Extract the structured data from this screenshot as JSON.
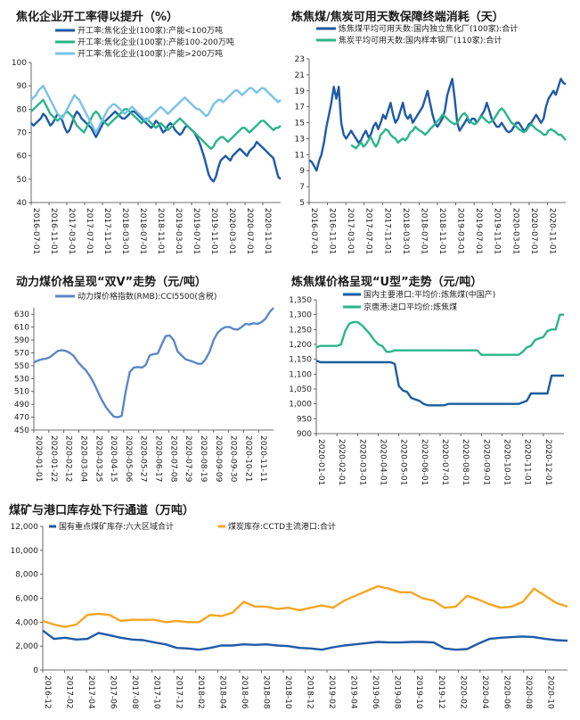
{
  "colors": {
    "dark_blue": "#1f5aa6",
    "teal": "#2bb58a",
    "light_blue": "#79c3e8",
    "orange": "#f5a623",
    "navy": "#1b5d9e"
  },
  "chart_data": [
    {
      "id": "c1",
      "type": "line",
      "title": "焦化企业开工率得以提升（%）",
      "ylim": [
        40,
        100
      ],
      "yticks": [
        40,
        50,
        60,
        70,
        80,
        90,
        100
      ],
      "xticks": [
        "2016-07-01",
        "2016-11-01",
        "2017-03-01",
        "2017-07-01",
        "2017-11-01",
        "2018-03-01",
        "2018-07-01",
        "2018-11-01",
        "2019-03-01",
        "2019-07-01",
        "2019-11-01",
        "2020-03-01",
        "2020-07-01",
        "2020-11-01"
      ],
      "npoints": 105,
      "series": [
        {
          "name": "开工率:焦化企业(100家):产能<100万吨",
          "color": "#1f5aa6",
          "values": [
            74,
            73,
            74,
            75,
            76,
            78,
            77,
            75,
            73,
            74,
            76,
            78,
            77,
            75,
            72,
            70,
            71,
            74,
            77,
            79,
            78,
            76,
            75,
            74,
            73,
            72,
            70,
            68,
            70,
            72,
            74,
            75,
            76,
            77,
            78,
            79,
            78,
            77,
            76,
            76,
            77,
            78,
            79,
            79,
            78,
            77,
            76,
            75,
            74,
            73,
            72,
            73,
            75,
            74,
            72,
            70,
            71,
            73,
            74,
            73,
            71,
            70,
            69,
            70,
            72,
            73,
            72,
            71,
            70,
            68,
            66,
            63,
            60,
            56,
            52,
            50,
            49,
            51,
            55,
            58,
            59,
            60,
            59,
            58,
            60,
            61,
            62,
            63,
            62,
            61,
            60,
            62,
            63,
            64,
            66,
            65,
            64,
            63,
            62,
            61,
            60,
            59,
            55,
            51,
            50
          ]
        },
        {
          "name": "开工率:焦化企业(100家):产能100-200万吨",
          "color": "#2bb58a",
          "values": [
            79,
            80,
            81,
            82,
            83,
            84,
            82,
            80,
            78,
            77,
            76,
            75,
            76,
            77,
            78,
            79,
            78,
            77,
            75,
            73,
            72,
            71,
            70,
            72,
            74,
            76,
            78,
            79,
            78,
            76,
            75,
            74,
            73,
            74,
            75,
            76,
            77,
            78,
            79,
            80,
            80,
            79,
            78,
            77,
            76,
            75,
            74,
            75,
            76,
            75,
            74,
            73,
            72,
            73,
            74,
            73,
            72,
            71,
            72,
            73,
            74,
            75,
            76,
            75,
            74,
            73,
            72,
            71,
            70,
            69,
            68,
            67,
            66,
            65,
            64,
            63,
            64,
            66,
            67,
            68,
            68,
            67,
            66,
            67,
            68,
            69,
            70,
            71,
            72,
            72,
            71,
            70,
            71,
            72,
            73,
            74,
            75,
            75,
            74,
            73,
            72,
            71,
            72,
            72,
            73
          ]
        },
        {
          "name": "开工率:焦化企业(100家):产能>200万吨",
          "color": "#79c3e8",
          "values": [
            84,
            85,
            86,
            88,
            89,
            90,
            88,
            86,
            84,
            82,
            80,
            78,
            77,
            76,
            78,
            80,
            82,
            84,
            86,
            85,
            84,
            82,
            80,
            78,
            76,
            74,
            72,
            70,
            72,
            74,
            76,
            78,
            80,
            81,
            82,
            82,
            81,
            80,
            79,
            78,
            79,
            80,
            81,
            80,
            79,
            78,
            77,
            76,
            75,
            76,
            77,
            78,
            79,
            80,
            81,
            80,
            79,
            78,
            79,
            80,
            81,
            82,
            83,
            84,
            85,
            84,
            83,
            82,
            81,
            80,
            80,
            79,
            78,
            77,
            78,
            80,
            82,
            83,
            84,
            84,
            83,
            84,
            85,
            86,
            87,
            88,
            88,
            87,
            86,
            87,
            88,
            89,
            89,
            88,
            87,
            88,
            89,
            89,
            88,
            87,
            86,
            85,
            84,
            83,
            84
          ]
        }
      ]
    },
    {
      "id": "c2",
      "type": "line",
      "title": "炼焦煤/焦炭可用天数保障终端消耗（天）",
      "ylim": [
        5,
        23
      ],
      "yticks": [
        5,
        7,
        9,
        11,
        13,
        15,
        17,
        19,
        21,
        23
      ],
      "xticks": [
        "2016-07-01",
        "2016-11-01",
        "2017-03-01",
        "2017-07-01",
        "2017-11-01",
        "2018-03-01",
        "2018-07-01",
        "2018-11-01",
        "2019-03-01",
        "2019-07-01",
        "2019-11-01",
        "2020-03-01",
        "2020-07-01",
        "2020-11-01"
      ],
      "npoints": 105,
      "series": [
        {
          "name": "炼焦煤平均可用天数:国内独立焦化厂(100家):合计",
          "color": "#1f5aa6",
          "values": [
            10.3,
            10.1,
            9.6,
            9.0,
            10.2,
            11.0,
            12.5,
            14.5,
            16.0,
            17.5,
            19.5,
            18.0,
            19.5,
            15.0,
            13.5,
            13.0,
            13.5,
            14.0,
            13.5,
            13.0,
            12.5,
            12.8,
            13.5,
            14.0,
            13.2,
            13.5,
            14.5,
            15.0,
            14.2,
            15.0,
            16.0,
            15.5,
            16.5,
            17.5,
            16.0,
            15.0,
            15.5,
            16.5,
            17.5,
            16.0,
            15.5,
            16.0,
            15.0,
            15.5,
            16.0,
            16.5,
            17.0,
            18.0,
            19.0,
            17.5,
            16.0,
            15.0,
            14.5,
            15.0,
            15.5,
            16.5,
            18.5,
            19.5,
            20.5,
            18.0,
            15.0,
            14.0,
            14.5,
            15.0,
            15.5,
            15.0,
            15.5,
            15.5,
            15.0,
            15.5,
            16.0,
            16.5,
            17.5,
            16.5,
            15.5,
            15.0,
            14.5,
            14.5,
            15.0,
            14.5,
            14.0,
            13.8,
            14.0,
            14.5,
            15.0,
            15.0,
            14.5,
            14.0,
            14.2,
            14.8,
            15.0,
            15.5,
            16.0,
            15.5,
            15.0,
            15.5,
            17.0,
            18.0,
            18.5,
            19.0,
            18.5,
            19.5,
            20.5,
            20.0,
            19.8
          ]
        },
        {
          "name": "焦炭平均可用天数:国内样本钢厂(110家):合计",
          "color": "#2bb58a",
          "values": [
            null,
            null,
            null,
            null,
            null,
            null,
            null,
            null,
            null,
            null,
            null,
            null,
            null,
            null,
            null,
            null,
            null,
            12.2,
            12.0,
            11.8,
            12.2,
            12.5,
            12.0,
            12.3,
            12.8,
            13.2,
            12.5,
            12.0,
            12.5,
            13.5,
            13.8,
            14.2,
            14.0,
            13.5,
            13.2,
            13.0,
            12.5,
            12.8,
            13.0,
            12.8,
            13.2,
            13.8,
            14.0,
            14.5,
            14.2,
            14.0,
            13.8,
            13.5,
            13.8,
            14.2,
            14.5,
            14.8,
            15.2,
            15.5,
            16.0,
            15.8,
            15.5,
            15.2,
            15.0,
            14.8,
            15.0,
            15.5,
            16.0,
            16.2,
            15.8,
            15.2,
            15.0,
            14.8,
            15.0,
            15.5,
            15.8,
            15.5,
            15.2,
            15.0,
            15.2,
            15.5,
            16.0,
            16.5,
            16.8,
            16.5,
            16.0,
            15.5,
            15.0,
            14.8,
            14.5,
            14.2,
            14.0,
            13.8,
            14.0,
            14.5,
            14.8,
            14.5,
            14.2,
            14.0,
            13.8,
            13.5,
            13.5,
            14.0,
            14.2,
            14.0,
            13.8,
            13.5,
            13.5,
            13.2,
            12.8
          ]
        }
      ]
    },
    {
      "id": "c3",
      "type": "line",
      "title": "动力煤价格呈现“双V”走势（元/吨）",
      "ylim": [
        450,
        640
      ],
      "yticks": [
        450,
        470,
        490,
        510,
        530,
        550,
        570,
        590,
        610,
        630
      ],
      "xticks": [
        "2020-01-01",
        "2020-01-22",
        "2020-02-12",
        "2020-03-04",
        "2020-03-25",
        "2020-04-15",
        "2020-05-06",
        "2020-05-27",
        "2020-06-17",
        "2020-07-08",
        "2020-07-29",
        "2020-08-19",
        "2020-09-09",
        "2020-09-30",
        "2020-10-21",
        "2020-11-11"
      ],
      "npoints": 61,
      "series": [
        {
          "name": "动力煤价格指数(RMB):CCI5500(含税)",
          "color": "#5b88c6",
          "values": [
            555,
            558,
            560,
            561,
            563,
            568,
            573,
            574,
            573,
            570,
            565,
            556,
            549,
            543,
            534,
            523,
            510,
            497,
            486,
            478,
            471,
            470,
            472,
            510,
            540,
            547,
            548,
            547,
            551,
            566,
            568,
            569,
            583,
            596,
            597,
            590,
            572,
            566,
            560,
            558,
            556,
            553,
            553,
            560,
            572,
            590,
            601,
            607,
            610,
            610,
            607,
            606,
            610,
            615,
            614,
            616,
            615,
            618,
            623,
            633,
            640
          ]
        }
      ]
    },
    {
      "id": "c4",
      "type": "line",
      "title": "炼焦煤价格呈现“U型”走势（元/吨）",
      "ylim": [
        900,
        1350
      ],
      "yticks": [
        900,
        950,
        1000,
        1050,
        1100,
        1150,
        1200,
        1250,
        1300,
        1350
      ],
      "yticklabels": [
        "900",
        "950",
        "1,000",
        "1,050",
        "1,100",
        "1,150",
        "1,200",
        "1,250",
        "1,300",
        "1,350"
      ],
      "xticks": [
        "2020-01-01",
        "2020-02-01",
        "2020-03-01",
        "2020-04-01",
        "2020-05-01",
        "2020-06-01",
        "2020-07-01",
        "2020-08-01",
        "2020-09-01",
        "2020-10-01",
        "2020-11-01",
        "2020-12-01"
      ],
      "npoints": 61,
      "series": [
        {
          "name": "国内主要港口:平均价:炼焦煤(中国产)",
          "color": "#1b5d9e",
          "values": [
            1145,
            1140,
            1140,
            1140,
            1140,
            1140,
            1140,
            1140,
            1140,
            1140,
            1140,
            1140,
            1140,
            1140,
            1140,
            1140,
            1140,
            1140,
            1140,
            1135,
            1060,
            1045,
            1040,
            1020,
            1015,
            1010,
            1000,
            995,
            995,
            995,
            995,
            995,
            1000,
            1000,
            1000,
            1000,
            1000,
            1000,
            1000,
            1000,
            1000,
            1000,
            1000,
            1000,
            1000,
            1000,
            1000,
            1000,
            1000,
            1000,
            1005,
            1010,
            1035,
            1035,
            1035,
            1035,
            1035,
            1095,
            1095,
            1095,
            1095
          ]
        },
        {
          "name": "京唐港:进口平均价:炼焦煤",
          "color": "#2bb58a",
          "values": [
            1190,
            1195,
            1195,
            1195,
            1195,
            1195,
            1200,
            1245,
            1270,
            1275,
            1275,
            1265,
            1250,
            1235,
            1215,
            1200,
            1195,
            1175,
            1175,
            1180,
            1180,
            1180,
            1180,
            1180,
            1180,
            1180,
            1180,
            1180,
            1180,
            1180,
            1180,
            1180,
            1180,
            1180,
            1180,
            1180,
            1180,
            1180,
            1180,
            1180,
            1165,
            1165,
            1165,
            1165,
            1165,
            1165,
            1165,
            1165,
            1165,
            1165,
            1175,
            1190,
            1195,
            1215,
            1220,
            1225,
            1245,
            1250,
            1250,
            1300,
            1300
          ]
        }
      ]
    },
    {
      "id": "c5",
      "type": "area",
      "title": "煤矿与港口库存处下行通道（万吨）",
      "ylim": [
        0,
        12000
      ],
      "yticks": [
        0,
        2000,
        4000,
        6000,
        8000,
        10000,
        12000
      ],
      "yticklabels": [
        "0",
        "2,000",
        "4,000",
        "6,000",
        "8,000",
        "10,000",
        "12,000"
      ],
      "xticks": [
        "2016-12",
        "2017-02",
        "2017-04",
        "2017-06",
        "2017-08",
        "2017-10",
        "2017-12",
        "2018-02",
        "2018-04",
        "2018-06",
        "2018-08",
        "2018-10",
        "2018-12",
        "2019-02",
        "2019-04",
        "2019-06",
        "2019-08",
        "2019-10",
        "2019-12",
        "2020-02",
        "2020-04",
        "2020-06",
        "2020-08",
        "2020-10"
      ],
      "npoints": 48,
      "series": [
        {
          "name": "国有重点煤矿库存:六大区域合计",
          "color": "#1f5aa6",
          "values": [
            3300,
            2600,
            2700,
            2550,
            2600,
            3100,
            2900,
            2700,
            2550,
            2500,
            2300,
            2150,
            1850,
            1800,
            1700,
            1850,
            2050,
            2050,
            2150,
            2100,
            2150,
            2050,
            2000,
            1850,
            1800,
            1700,
            1900,
            2050,
            2150,
            2250,
            2350,
            2300,
            2300,
            2350,
            2350,
            2300,
            1800,
            1700,
            1750,
            2200,
            2600,
            2700,
            2750,
            2800,
            2750,
            2600,
            2500,
            2450
          ]
        },
        {
          "name": "煤炭库存:CCTD主流港口:合计",
          "color": "#f5a623",
          "values": [
            4100,
            3800,
            3600,
            3800,
            4600,
            4700,
            4600,
            4100,
            4200,
            4200,
            4200,
            4000,
            4100,
            4000,
            4000,
            4600,
            4500,
            4800,
            5700,
            5300,
            5300,
            5100,
            5200,
            5000,
            5200,
            5400,
            5200,
            5800,
            6200,
            6600,
            7000,
            6800,
            6500,
            6500,
            6000,
            5800,
            5200,
            5300,
            6200,
            5900,
            5500,
            5200,
            5300,
            5700,
            6800,
            6200,
            5600,
            5300
          ]
        }
      ]
    }
  ]
}
